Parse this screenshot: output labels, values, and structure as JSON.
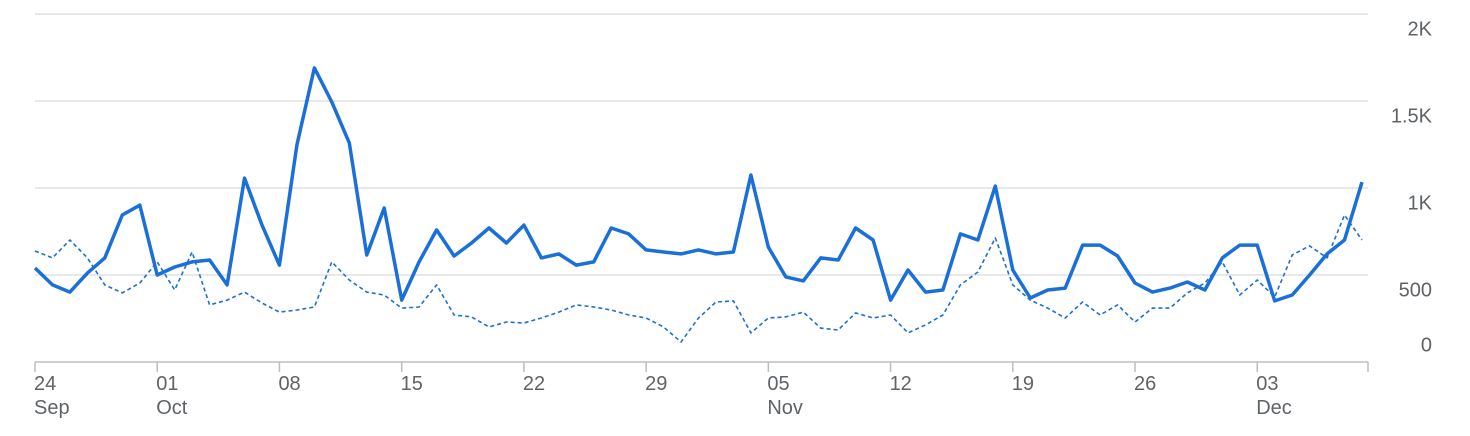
{
  "chart_data": {
    "type": "line",
    "categories": [
      "24\nSep",
      null,
      null,
      null,
      null,
      null,
      null,
      "01\nOct",
      null,
      null,
      null,
      null,
      null,
      null,
      "08",
      null,
      null,
      null,
      null,
      null,
      null,
      "15",
      null,
      null,
      null,
      null,
      null,
      null,
      "22",
      null,
      null,
      null,
      null,
      null,
      null,
      "29",
      null,
      null,
      null,
      null,
      null,
      null,
      "05\nNov",
      null,
      null,
      null,
      null,
      null,
      null,
      "12",
      null,
      null,
      null,
      null,
      null,
      null,
      "19",
      null,
      null,
      null,
      null,
      null,
      null,
      "26",
      null,
      null,
      null,
      null,
      null,
      null,
      "03\nDec",
      null,
      null,
      null,
      null,
      null,
      null
    ],
    "series": [
      {
        "color": "#1a6fd8",
        "style": "solid",
        "values": [
          540,
          443,
          402,
          511,
          598,
          845,
          902,
          500,
          546,
          575,
          586,
          443,
          1057,
          787,
          557,
          1247,
          1690,
          1494,
          1259,
          615,
          885,
          356,
          575,
          759,
          609,
          684,
          770,
          684,
          787,
          598,
          621,
          557,
          575,
          770,
          736,
          644,
          632,
          621,
          644,
          621,
          632,
          1075,
          661,
          489,
          466,
          598,
          586,
          770,
          701,
          356,
          529,
          402,
          414,
          736,
          701,
          1011,
          529,
          368,
          414,
          425,
          672,
          672,
          609,
          454,
          402,
          425,
          460,
          414,
          598,
          672,
          672,
          351,
          385,
          500,
          621,
          701,
          1034
        ]
      },
      {
        "color": "#1a6fd8",
        "style": "dotted",
        "values": [
          638,
          598,
          701,
          598,
          443,
          397,
          454,
          575,
          414,
          632,
          328,
          356,
          402,
          339,
          287,
          299,
          316,
          575,
          471,
          402,
          385,
          310,
          316,
          443,
          270,
          259,
          201,
          230,
          224,
          253,
          287,
          328,
          316,
          299,
          270,
          253,
          201,
          115,
          253,
          345,
          351,
          167,
          253,
          259,
          287,
          195,
          184,
          282,
          253,
          270,
          167,
          213,
          270,
          443,
          517,
          713,
          443,
          356,
          310,
          253,
          345,
          270,
          328,
          230,
          310,
          310,
          397,
          454,
          575,
          385,
          471,
          374,
          615,
          667,
          598,
          845,
          701
        ]
      }
    ],
    "ylim": [
      0,
      2000
    ],
    "yticks": [
      0,
      500,
      {
        "value": 1000,
        "label": "1K"
      },
      {
        "value": 1500,
        "label": "1.5K"
      },
      {
        "value": 2000,
        "label": "2K"
      }
    ],
    "grid": true
  }
}
